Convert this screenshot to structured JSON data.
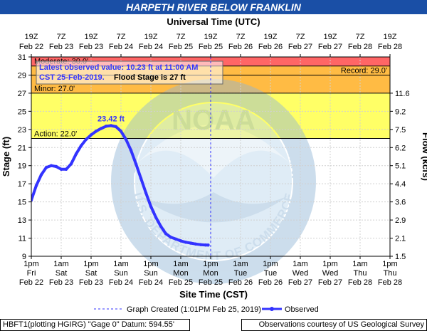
{
  "chart_data": {
    "type": "line",
    "title": "HARPETH RIVER BELOW FRANKLIN",
    "top_axis_label": "Universal Time (UTC)",
    "xlabel": "Site Time (CST)",
    "ylabel": "Stage (ft)",
    "y2label": "Flow (kcfs)",
    "ylim": [
      9,
      31
    ],
    "y_ticks": [
      9,
      11,
      13,
      15,
      17,
      19,
      21,
      23,
      25,
      27,
      29,
      31
    ],
    "flow_ticks": [
      {
        "stage": 9,
        "label": "1.5"
      },
      {
        "stage": 11,
        "label": "2.1"
      },
      {
        "stage": 13,
        "label": "2.9"
      },
      {
        "stage": 15,
        "label": "3.6"
      },
      {
        "stage": 17,
        "label": "4.4"
      },
      {
        "stage": 19,
        "label": "5.1"
      },
      {
        "stage": 21,
        "label": "6.2"
      },
      {
        "stage": 23,
        "label": "7.5"
      },
      {
        "stage": 25,
        "label": "9.2"
      },
      {
        "stage": 27,
        "label": "11.6"
      }
    ],
    "x_hours_range": [
      0,
      144
    ],
    "bottom_ticks": [
      {
        "h": 0,
        "time": "1pm",
        "day": "Fri",
        "date": "Feb 22"
      },
      {
        "h": 12,
        "time": "1am",
        "day": "Sat",
        "date": "Feb 23"
      },
      {
        "h": 24,
        "time": "1pm",
        "day": "Sat",
        "date": "Feb 23"
      },
      {
        "h": 36,
        "time": "1am",
        "day": "Sun",
        "date": "Feb 24"
      },
      {
        "h": 48,
        "time": "1pm",
        "day": "Sun",
        "date": "Feb 24"
      },
      {
        "h": 60,
        "time": "1am",
        "day": "Mon",
        "date": "Feb 25"
      },
      {
        "h": 72,
        "time": "1pm",
        "day": "Mon",
        "date": "Feb 25"
      },
      {
        "h": 84,
        "time": "1am",
        "day": "Tue",
        "date": "Feb 26"
      },
      {
        "h": 96,
        "time": "1pm",
        "day": "Tue",
        "date": "Feb 26"
      },
      {
        "h": 108,
        "time": "1am",
        "day": "Wed",
        "date": "Feb 27"
      },
      {
        "h": 120,
        "time": "1pm",
        "day": "Wed",
        "date": "Feb 27"
      },
      {
        "h": 132,
        "time": "1am",
        "day": "Thu",
        "date": "Feb 28"
      },
      {
        "h": 144,
        "time": "1pm",
        "day": "Thu",
        "date": "Feb 28"
      }
    ],
    "top_ticks": [
      {
        "h": 0,
        "time": "19Z",
        "date": "Feb 22"
      },
      {
        "h": 12,
        "time": "7Z",
        "date": "Feb 23"
      },
      {
        "h": 24,
        "time": "19Z",
        "date": "Feb 23"
      },
      {
        "h": 36,
        "time": "7Z",
        "date": "Feb 24"
      },
      {
        "h": 48,
        "time": "19Z",
        "date": "Feb 24"
      },
      {
        "h": 60,
        "time": "7Z",
        "date": "Feb 25"
      },
      {
        "h": 72,
        "time": "19Z",
        "date": "Feb 25"
      },
      {
        "h": 84,
        "time": "7Z",
        "date": "Feb 26"
      },
      {
        "h": 96,
        "time": "19Z",
        "date": "Feb 26"
      },
      {
        "h": 108,
        "time": "7Z",
        "date": "Feb 27"
      },
      {
        "h": 120,
        "time": "19Z",
        "date": "Feb 27"
      },
      {
        "h": 132,
        "time": "7Z",
        "date": "Feb 28"
      },
      {
        "h": 144,
        "time": "19Z",
        "date": "Feb 28"
      }
    ],
    "bands": [
      {
        "from": 22,
        "to": 27,
        "color": "#ffff66"
      },
      {
        "from": 27,
        "to": 30,
        "color": "#ffbb44"
      },
      {
        "from": 30,
        "to": 31,
        "color": "#ff6666"
      }
    ],
    "thresholds": [
      {
        "name": "Action",
        "label": "Action: 22.0'",
        "value": 22,
        "side": "left"
      },
      {
        "name": "Minor",
        "label": "Minor: 27.0'",
        "value": 27,
        "side": "left"
      },
      {
        "name": "Moderate",
        "label": "Moderate: 30.0'",
        "value": 30,
        "side": "left"
      },
      {
        "name": "Record",
        "label": "Record: 29.0'",
        "value": 29,
        "side": "right"
      }
    ],
    "graph_created_hours": 72,
    "series": [
      {
        "name": "Observed",
        "color": "#3333ff",
        "x_hours": [
          0,
          2,
          4,
          6,
          8,
          10,
          12,
          14,
          16,
          18,
          20,
          22,
          24,
          26,
          28,
          30,
          32,
          34,
          36,
          38,
          40,
          42,
          44,
          46,
          48,
          49,
          50,
          51,
          52,
          53,
          54,
          56,
          58,
          60,
          62,
          64,
          66,
          68,
          70,
          71
        ],
        "values": [
          15.2,
          16.8,
          18.0,
          18.8,
          19.0,
          18.9,
          18.6,
          18.6,
          19.2,
          20.3,
          21.2,
          21.9,
          22.4,
          22.8,
          23.1,
          23.35,
          23.42,
          23.3,
          22.8,
          21.9,
          20.7,
          19.2,
          17.6,
          16.0,
          14.5,
          13.9,
          13.3,
          12.8,
          12.3,
          11.9,
          11.5,
          11.1,
          10.9,
          10.7,
          10.55,
          10.45,
          10.35,
          10.28,
          10.24,
          10.23
        ]
      }
    ],
    "peak_label": "23.42 ft",
    "peak_hours": 32,
    "peak_value": 23.42
  },
  "info_box": {
    "line1": "Latest observed value: 10.23  ft at 11:00 AM",
    "line2a": "CST 25-Feb-2019.",
    "line2b": "Flood Stage is 27 ft"
  },
  "watermark": {
    "text": "NOAA",
    "ring_top": "NATIONAL OCEANIC AND ATMOSPHERIC ADMINISTRATION",
    "ring_bottom": "U.S. DEPARTMENT OF COMMERCE"
  },
  "legend": {
    "graph_created": "Graph Created (1:01PM Feb 25, 2019)",
    "observed": "Observed"
  },
  "footer": {
    "left": "HBFT1(plotting HGIRG) \"Gage 0\" Datum:  594.55'",
    "right": "Observations courtesy of US Geological Survey"
  },
  "colors": {
    "title_bg": "#1a4fa6",
    "title_text": "#ffffff",
    "observed": "#3333ff",
    "info_text": "#3333ff"
  }
}
